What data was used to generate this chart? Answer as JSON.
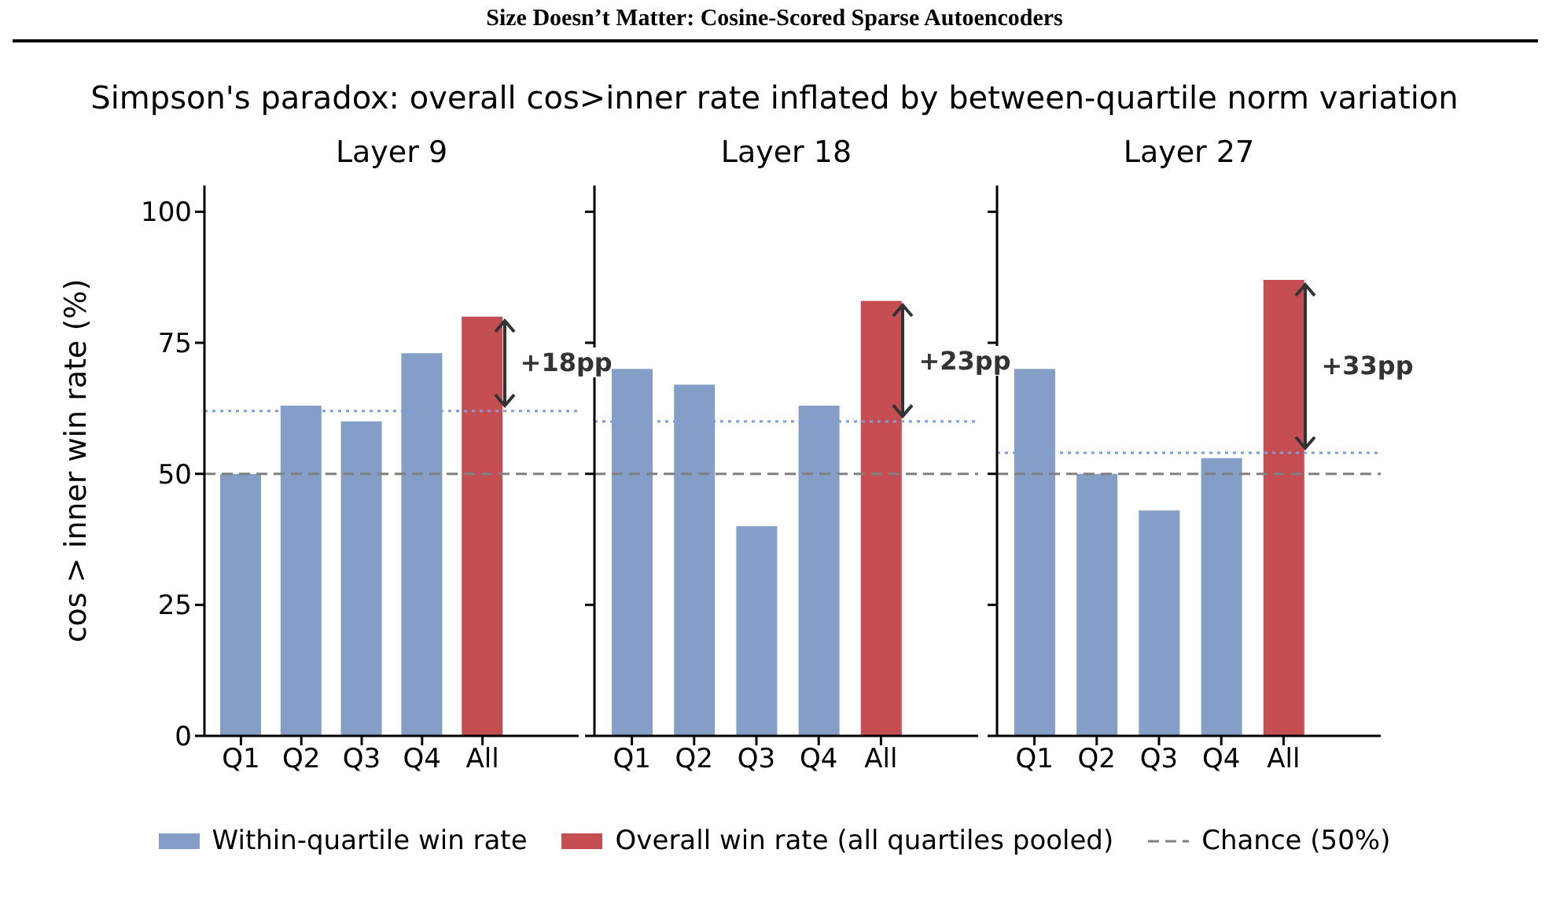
{
  "chart_data": [
    {
      "type": "bar",
      "title": "Layer 9",
      "ylabel": "cos > inner win rate (%)",
      "categories": [
        "Q1",
        "Q2",
        "Q3",
        "Q4",
        "All"
      ],
      "stacked": true,
      "legend": "bottom",
      "series": [
        {
          "name": "Within-quartile win rate",
          "color": "#849ec8",
          "values": [
            50,
            63,
            60,
            73,
            null
          ]
        },
        {
          "name": "Overall win rate (all quartiles pooled)",
          "color": "#c44e52",
          "values": [
            null,
            null,
            null,
            null,
            80
          ]
        }
      ],
      "ylim": [
        0,
        105
      ],
      "yticks": [
        0,
        25,
        50,
        75,
        100
      ],
      "ref_lines": [
        {
          "axis": "y",
          "value": 50,
          "label": "Chance (50%)",
          "color": "#808080",
          "line_style": "dashed"
        },
        {
          "axis": "y",
          "value": 62,
          "color": "#7f9fd6",
          "line_style": "dotted"
        }
      ],
      "annotations": [
        "Size Doesn’t Matter: Cosine-Scored Sparse Autoencoders",
        "Simpson's paradox: overall cos>inner rate inflated by between-quartile norm variation",
        "+18pp"
      ]
    },
    {
      "type": "bar",
      "title": "Layer 18",
      "categories": [
        "Q1",
        "Q2",
        "Q3",
        "Q4",
        "All"
      ],
      "stacked": true,
      "tick_labels": "x",
      "series": [
        {
          "color": "#849ec8",
          "values": [
            70,
            67,
            40,
            63,
            null
          ]
        },
        {
          "color": "#c44e52",
          "values": [
            null,
            null,
            null,
            null,
            83
          ]
        }
      ],
      "ylim": [
        0,
        105
      ],
      "yticks": [
        0,
        25,
        50,
        75,
        100
      ],
      "ref_lines": [
        {
          "axis": "y",
          "value": 50,
          "color": "#808080",
          "line_style": "dashed"
        },
        {
          "axis": "y",
          "value": 60,
          "color": "#7f9fd6",
          "line_style": "dotted"
        }
      ],
      "annotations": [
        "+23pp"
      ]
    },
    {
      "type": "bar",
      "title": "Layer 27",
      "categories": [
        "Q1",
        "Q2",
        "Q3",
        "Q4",
        "All"
      ],
      "stacked": true,
      "tick_labels": "x",
      "series": [
        {
          "color": "#849ec8",
          "values": [
            70,
            50,
            43,
            53,
            null
          ]
        },
        {
          "color": "#c44e52",
          "values": [
            null,
            null,
            null,
            null,
            87
          ]
        }
      ],
      "ylim": [
        0,
        105
      ],
      "yticks": [
        0,
        25,
        50,
        75,
        100
      ],
      "ref_lines": [
        {
          "axis": "y",
          "value": 50,
          "color": "#808080",
          "line_style": "dashed"
        },
        {
          "axis": "y",
          "value": 54,
          "color": "#7f9fd6",
          "line_style": "dotted"
        }
      ],
      "annotations": [
        "+33pp"
      ]
    }
  ]
}
